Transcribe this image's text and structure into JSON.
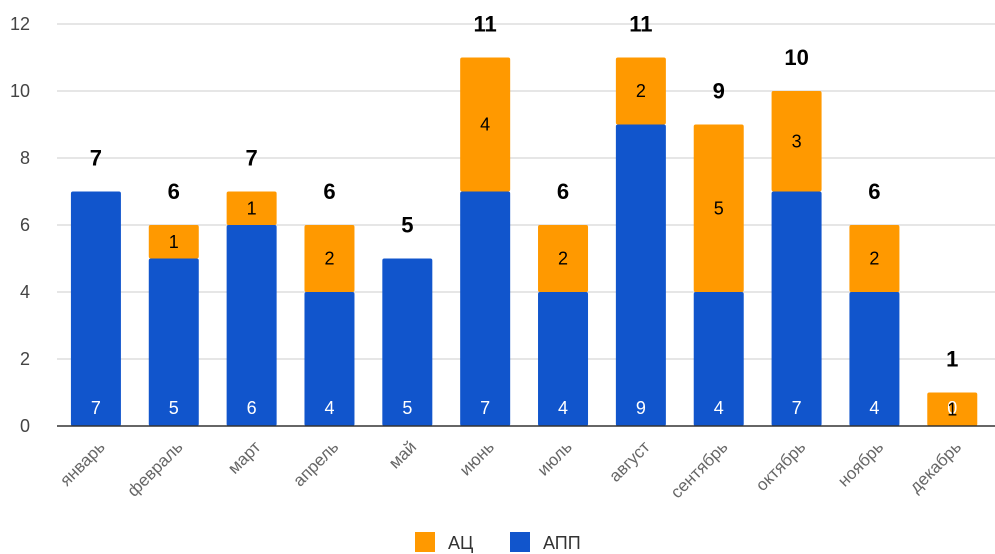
{
  "colors": {
    "ac": "#ff9900",
    "app": "#1155cc",
    "grid": "#cccccc",
    "axis": "#333333"
  },
  "chart_data": {
    "type": "bar",
    "stacked": true,
    "categories": [
      "январь",
      "февраль",
      "март",
      "апрель",
      "май",
      "июнь",
      "июль",
      "август",
      "сентябрь",
      "октябрь",
      "ноябрь",
      "декабрь"
    ],
    "series": [
      {
        "name": "АПП",
        "values": [
          7,
          5,
          6,
          4,
          5,
          7,
          4,
          9,
          4,
          7,
          4,
          0
        ],
        "labels": [
          "7",
          "5",
          "6",
          "4",
          "5",
          "7",
          "4",
          "9",
          "4",
          "7",
          "4",
          "0"
        ]
      },
      {
        "name": "АЦ",
        "values": [
          0,
          1,
          1,
          2,
          0,
          4,
          2,
          2,
          5,
          3,
          2,
          1
        ],
        "labels": [
          "",
          "1",
          "1",
          "2",
          "",
          "4",
          "2",
          "2",
          "5",
          "3",
          "2",
          "1"
        ]
      }
    ],
    "totals": [
      7,
      6,
      7,
      6,
      5,
      11,
      6,
      11,
      9,
      10,
      6,
      1
    ],
    "ylim": [
      0,
      12
    ],
    "yticks": [
      0,
      2,
      4,
      6,
      8,
      10,
      12
    ],
    "grid": true,
    "legend_position": "bottom",
    "legend": [
      "АЦ",
      "АПП"
    ]
  }
}
